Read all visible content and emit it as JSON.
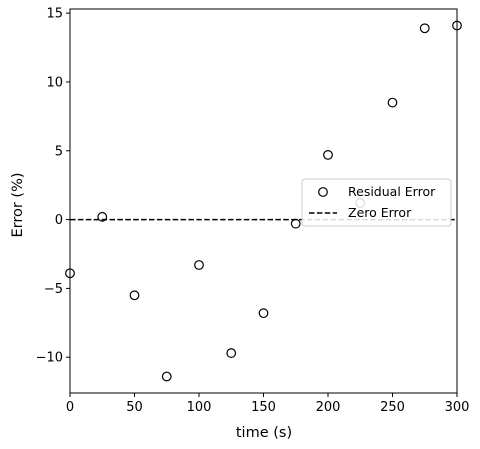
{
  "chart_data": {
    "type": "scatter",
    "xlabel": "time (s)",
    "ylabel": "Error (%)",
    "xlim": [
      0,
      300
    ],
    "ylim": [
      -12.6,
      15.3
    ],
    "xticks": [
      0,
      50,
      100,
      150,
      200,
      250,
      300
    ],
    "yticks": [
      -10,
      -5,
      0,
      5,
      10,
      15
    ],
    "xtick_labels": [
      "0",
      "50",
      "100",
      "150",
      "200",
      "250",
      "300"
    ],
    "ytick_labels": [
      "−10",
      "−5",
      "0",
      "5",
      "10",
      "15"
    ],
    "grid": false,
    "legend": {
      "placement": "center-right",
      "entries": [
        "Residual Error",
        "Zero Error"
      ]
    },
    "series": [
      {
        "name": "Residual Error",
        "kind": "scatter",
        "marker": "hollow-circle",
        "color": "#000000",
        "x": [
          0,
          25,
          50,
          75,
          100,
          125,
          150,
          175,
          200,
          225,
          250,
          275,
          300
        ],
        "y": [
          -3.9,
          0.2,
          -5.5,
          -11.4,
          -3.3,
          -9.7,
          -6.8,
          -0.3,
          4.7,
          1.2,
          8.5,
          13.9,
          14.1
        ]
      },
      {
        "name": "Zero Error",
        "kind": "line",
        "style": "dashed",
        "color": "#000000",
        "x": [
          0,
          300
        ],
        "y": [
          0,
          0
        ]
      }
    ]
  }
}
